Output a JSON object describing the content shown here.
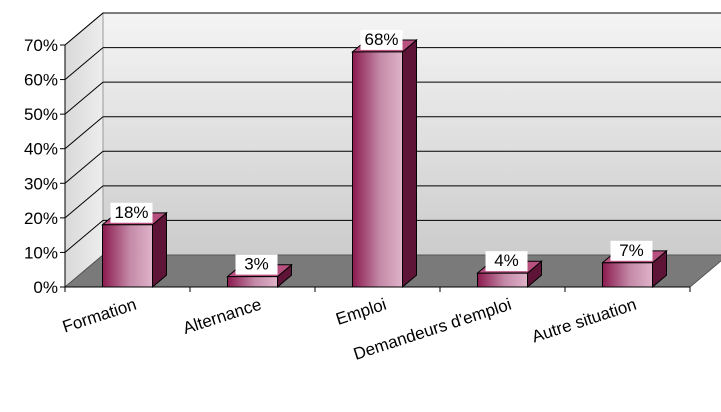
{
  "chart_data": {
    "type": "bar",
    "categories": [
      "Formation",
      "Alternance",
      "Emploi",
      "Demandeurs d'emploi",
      "Autre situation"
    ],
    "values": [
      18,
      3,
      68,
      4,
      7
    ],
    "value_format": "%",
    "ylim": [
      0,
      70
    ],
    "yticks": [
      "0%",
      "10%",
      "20%",
      "30%",
      "40%",
      "50%",
      "60%",
      "70%"
    ],
    "grid": true,
    "legend": "none",
    "style": "3d-column",
    "colors": {
      "bar_dark": "#8b1a4e",
      "bar_light": "#d9a9c2",
      "bar_top": "#b7507f",
      "bar_side": "#5e1436",
      "floor": "#7a7a7a",
      "wall_top": "#f2f2f2",
      "wall_bottom": "#cfcfcf"
    }
  }
}
